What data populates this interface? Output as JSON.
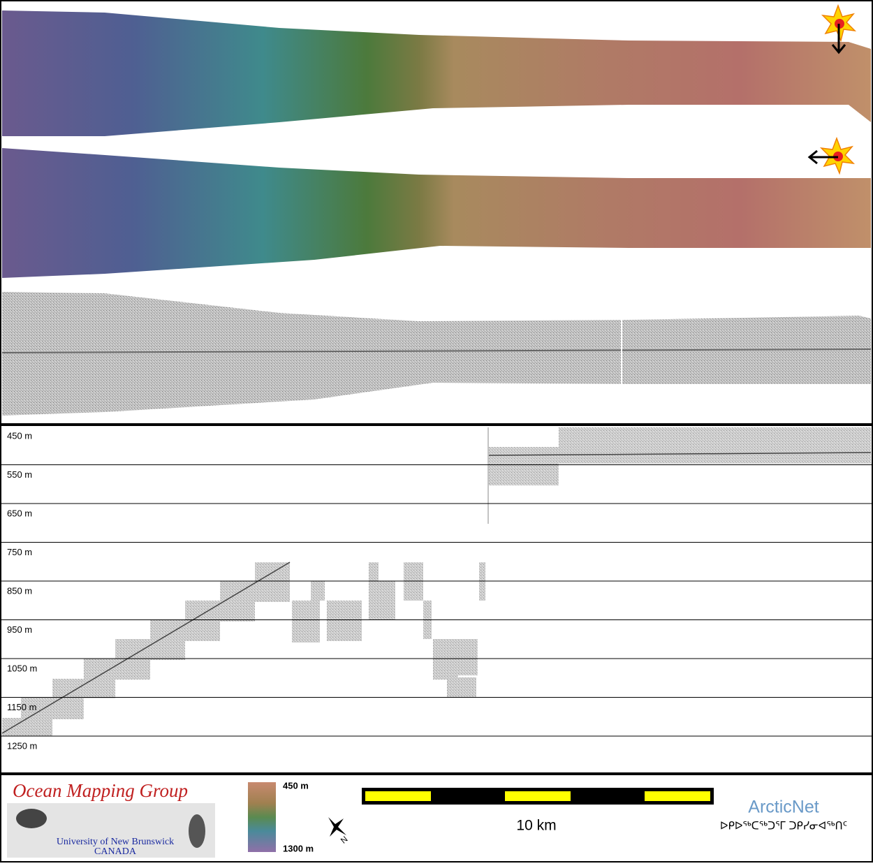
{
  "profile": {
    "depth_labels": [
      "450 m",
      "550 m",
      "650 m",
      "750 m",
      "850 m",
      "950 m",
      "1050 m",
      "1150 m",
      "1250 m"
    ]
  },
  "footer": {
    "logo_title": "Ocean Mapping Group",
    "logo_university": "University of New Brunswick",
    "logo_country": "CANADA",
    "colorbar_top": "450 m",
    "colorbar_bottom": "1300 m",
    "north": "N",
    "scale_label": "10 km",
    "partner_name": "ArcticNet",
    "partner_syllabics": "ᐅᑭᐅᖅᑕᖅᑐᕐᒥ ᑐᑭᓯᓂᐊᖅᑎᑦ"
  }
}
